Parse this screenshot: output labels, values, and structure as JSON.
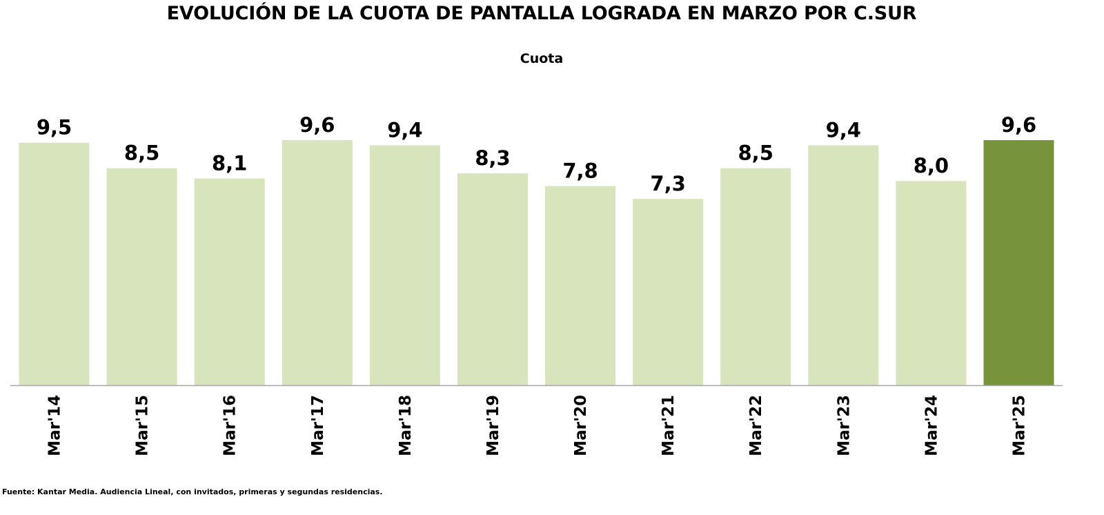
{
  "chart_data": {
    "type": "bar",
    "title": "EVOLUCIÓN DE LA CUOTA DE PANTALLA LOGRADA EN MARZO POR C.SUR",
    "subtitle": "Cuota",
    "categories": [
      "Mar'14",
      "Mar'15",
      "Mar'16",
      "Mar'17",
      "Mar'18",
      "Mar'19",
      "Mar'20",
      "Mar'21",
      "Mar'22",
      "Mar'23",
      "Mar'24",
      "Mar'25"
    ],
    "values": [
      9.5,
      8.5,
      8.1,
      9.6,
      9.4,
      8.3,
      7.8,
      7.3,
      8.5,
      9.4,
      8.0,
      9.6
    ],
    "value_labels": [
      "9,5",
      "8,5",
      "8,1",
      "9,6",
      "9,4",
      "8,3",
      "7,8",
      "7,3",
      "8,5",
      "9,4",
      "8,0",
      "9,6"
    ],
    "ylim": [
      0,
      9.6
    ],
    "grid": false,
    "legend": "none",
    "colors": {
      "bar": "#d8e4bc",
      "highlight": "#77933c",
      "axis": "#a6a6a6"
    },
    "highlight_index": 11
  },
  "footer": {
    "source": "Fuente: Kantar Media. Audiencia Lineal, con invitados, primeras y segundas residencias."
  }
}
